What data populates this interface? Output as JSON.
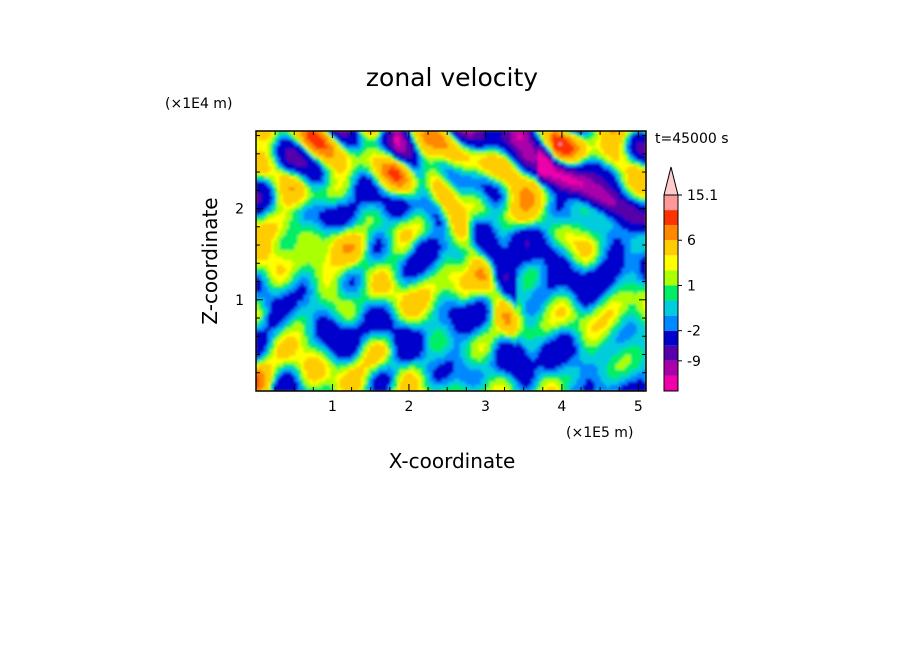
{
  "chart_data": {
    "type": "heatmap",
    "title": "zonal velocity",
    "xlabel": "X-coordinate",
    "ylabel": "Z-coordinate",
    "x_unit": "(×1E5 m)",
    "y_unit": "(×1E4 m)",
    "time_label": "t=45000 s",
    "xlim": [
      0,
      5.1
    ],
    "ylim": [
      0,
      2.85
    ],
    "x_ticks": [
      "1",
      "2",
      "3",
      "4",
      "5"
    ],
    "x_tick_values": [
      1,
      2,
      3,
      4,
      5
    ],
    "y_ticks": [
      "1",
      "2"
    ],
    "y_tick_values": [
      1,
      2
    ],
    "colorbar": {
      "levels": [
        -12,
        -9,
        -6,
        -2,
        -1,
        0,
        1,
        2,
        3,
        6,
        9,
        12,
        15.1
      ],
      "colors": [
        "#ee00aa",
        "#aa00aa",
        "#5500aa",
        "#0000cc",
        "#0088ff",
        "#00ccdd",
        "#00ee66",
        "#aaff00",
        "#ffff00",
        "#ffcc00",
        "#ff8800",
        "#ff3300",
        "#ff9999",
        "#ffcccc"
      ],
      "tick_labels": [
        "-9",
        "-2",
        "1",
        "6",
        "15.1"
      ],
      "tick_values": [
        -9,
        -2,
        1,
        6,
        15.1
      ],
      "extend_max": true
    }
  }
}
